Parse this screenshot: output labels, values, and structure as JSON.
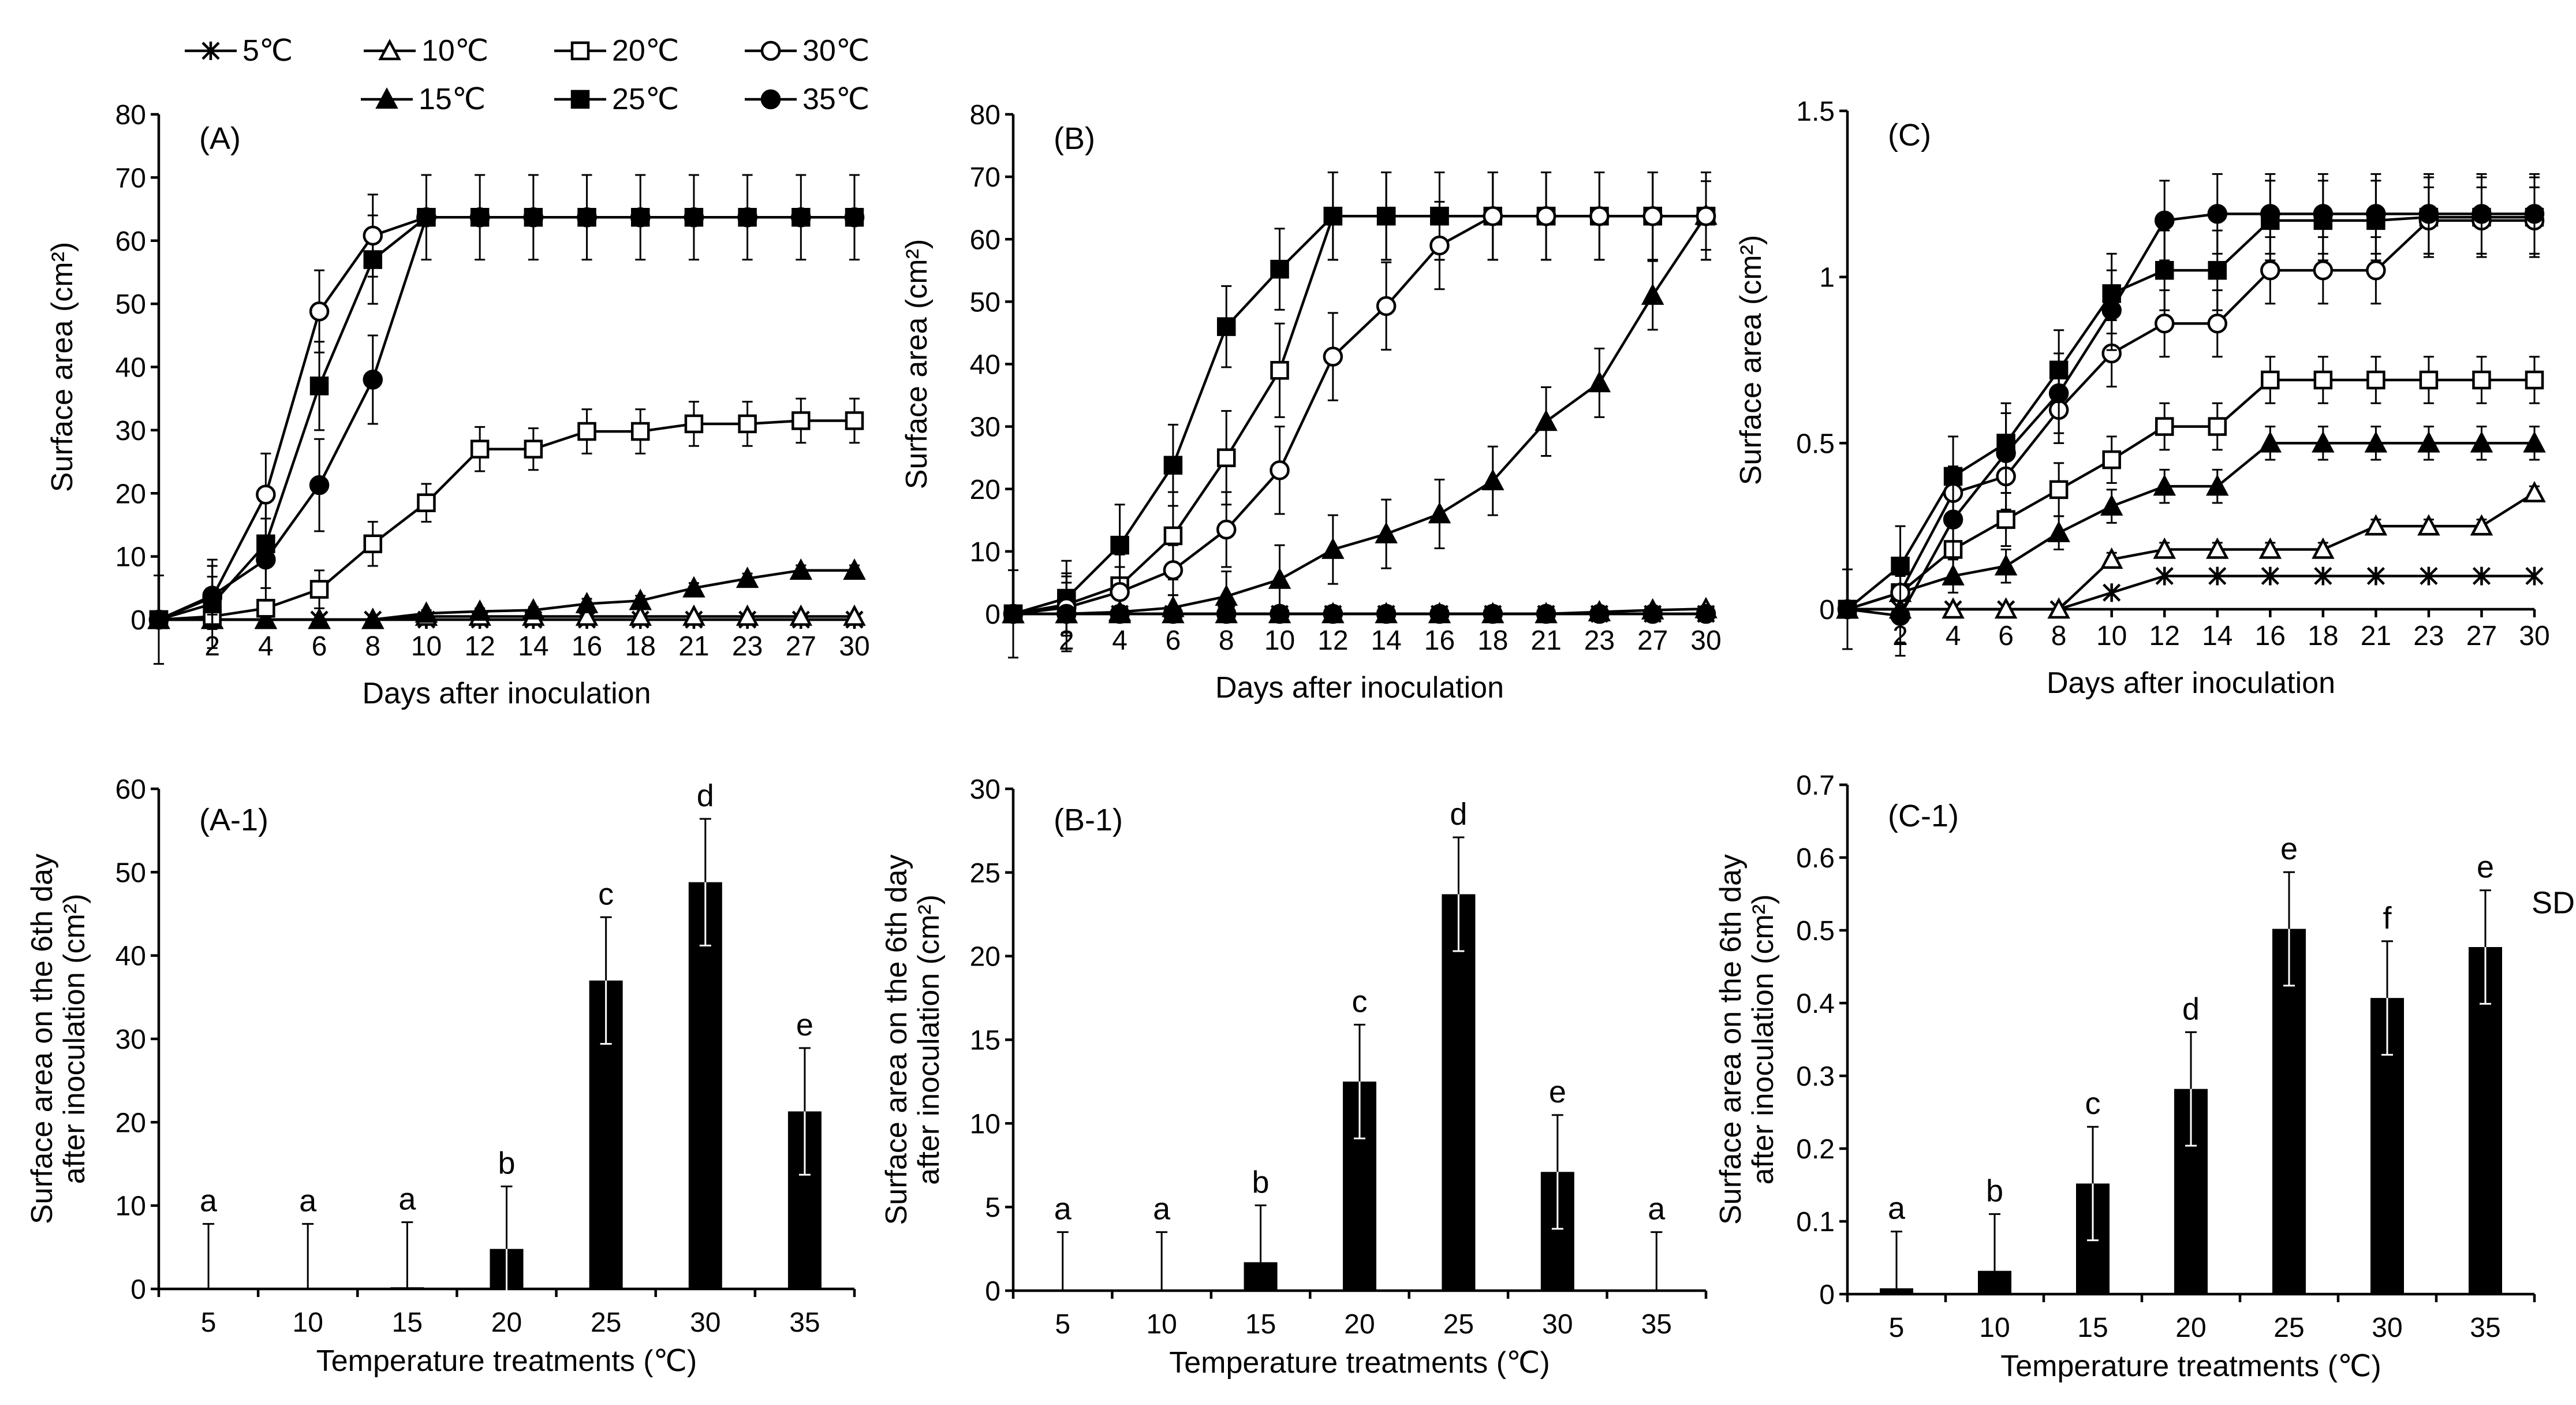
{
  "legend": {
    "row1": [
      {
        "label": "5℃",
        "marker": "star",
        "fill": "none"
      },
      {
        "label": "10℃",
        "marker": "triangle",
        "fill": "none"
      },
      {
        "label": "20℃",
        "marker": "square",
        "fill": "none"
      },
      {
        "label": "30℃",
        "marker": "circle",
        "fill": "none"
      }
    ],
    "row2": [
      {
        "label": "15℃",
        "marker": "triangle",
        "fill": "#000000"
      },
      {
        "label": "25℃",
        "marker": "square",
        "fill": "#000000"
      },
      {
        "label": "35℃",
        "marker": "circle",
        "fill": "#000000"
      }
    ]
  },
  "chart_data": [
    {
      "panel": "(A)",
      "type": "line",
      "x": [
        "",
        "2",
        "4",
        "6",
        "8",
        "10",
        "12",
        "14",
        "16",
        "18",
        "21",
        "23",
        "27",
        "30"
      ],
      "xlabel": "Days after inoculation",
      "ylabel": "Surface area (cm²)",
      "ylim": [
        0,
        80
      ],
      "yticks": [
        "0",
        "10",
        "20",
        "30",
        "40",
        "50",
        "60",
        "70",
        "80"
      ],
      "series": [
        {
          "name": "5℃",
          "marker": "star",
          "fill": "none",
          "values": [
            0,
            0,
            0,
            0,
            0,
            0,
            0,
            0,
            0,
            0,
            0,
            0,
            0,
            0
          ],
          "err": [
            7,
            0,
            0,
            0,
            0,
            0,
            0,
            0,
            0,
            0,
            0,
            0,
            0,
            0
          ]
        },
        {
          "name": "10℃",
          "marker": "triangle",
          "fill": "none",
          "values": [
            0,
            0,
            0,
            0,
            0,
            0.5,
            0.5,
            0.5,
            0.5,
            0.5,
            0.5,
            0.5,
            0.5,
            0.5
          ],
          "err": [
            0,
            0,
            0,
            0,
            0,
            0,
            0,
            0,
            0,
            0,
            0,
            0,
            0,
            0
          ]
        },
        {
          "name": "15℃",
          "marker": "triangle",
          "fill": "#000000",
          "values": [
            0,
            0,
            0,
            0,
            0,
            1,
            1.3,
            1.5,
            2.5,
            3,
            5,
            6.5,
            7.8,
            7.8
          ],
          "err": [
            0,
            0,
            0,
            0,
            0,
            0.5,
            0.5,
            0.5,
            0.8,
            0.8,
            0.8,
            0.8,
            0.8,
            0.8
          ]
        },
        {
          "name": "20℃",
          "marker": "square",
          "fill": "none",
          "values": [
            0,
            0.5,
            1.8,
            4.8,
            12,
            18.5,
            27,
            27,
            29.8,
            29.8,
            31,
            31,
            31.5,
            31.5
          ],
          "err": [
            0,
            0.5,
            1,
            3,
            3.5,
            3,
            3.5,
            3.3,
            3.5,
            3.5,
            3.5,
            3.5,
            3.5,
            3.5
          ]
        },
        {
          "name": "25℃",
          "marker": "square",
          "fill": "#000000",
          "values": [
            0,
            2.5,
            12,
            37,
            57,
            63.7,
            63.7,
            63.7,
            63.7,
            63.7,
            63.7,
            63.7,
            63.7,
            63.7
          ],
          "err": [
            0,
            7,
            7,
            7,
            7,
            6.7,
            6.7,
            6.7,
            6.7,
            6.7,
            6.7,
            6.7,
            6.7,
            6.7
          ]
        },
        {
          "name": "30℃",
          "marker": "circle",
          "fill": "none",
          "values": [
            0,
            3.5,
            19.8,
            48.8,
            60.8,
            63.7,
            63.7,
            63.7,
            63.7,
            63.7,
            63.7,
            63.7,
            63.7,
            63.7
          ],
          "err": [
            0,
            5,
            6.5,
            6.5,
            6.5,
            0,
            0,
            0,
            0,
            0,
            0,
            0,
            0,
            0
          ]
        },
        {
          "name": "35℃",
          "marker": "circle",
          "fill": "#000000",
          "values": [
            0,
            3.8,
            9.5,
            21.3,
            38,
            63.7,
            63.7,
            63.7,
            63.7,
            63.7,
            63.7,
            63.7,
            63.7,
            63.7
          ],
          "err": [
            0,
            3,
            6.5,
            7.3,
            7,
            0,
            0,
            0,
            0,
            0,
            0,
            0,
            0,
            0
          ]
        }
      ]
    },
    {
      "panel": "(B)",
      "type": "line",
      "x": [
        "",
        "2",
        "4",
        "6",
        "8",
        "10",
        "12",
        "14",
        "16",
        "18",
        "21",
        "23",
        "27",
        "30"
      ],
      "xlabel": "Days after inoculation",
      "ylabel": "Surface area (cm²)",
      "ylim": [
        0,
        80
      ],
      "yticks": [
        "0",
        "10",
        "20",
        "30",
        "40",
        "50",
        "60",
        "70",
        "80"
      ],
      "series": [
        {
          "name": "5℃",
          "marker": "star",
          "fill": "none",
          "values": [
            0,
            0,
            0,
            0,
            0,
            0,
            0,
            0,
            0,
            0,
            0,
            0,
            0,
            0
          ],
          "err": [
            7,
            6,
            0,
            0,
            0,
            0,
            0,
            0,
            0,
            0,
            0,
            0,
            0,
            0
          ]
        },
        {
          "name": "10℃",
          "marker": "triangle",
          "fill": "none",
          "values": [
            0,
            0,
            0,
            0,
            0,
            0,
            0,
            0,
            0,
            0,
            0,
            0.3,
            0.6,
            0.8
          ],
          "err": [
            0,
            0,
            0,
            0,
            0,
            0,
            0,
            0,
            0,
            0,
            0,
            0,
            0,
            0
          ]
        },
        {
          "name": "15℃",
          "marker": "triangle",
          "fill": "#000000",
          "values": [
            0,
            0,
            0.3,
            1,
            2.8,
            5.5,
            10.3,
            12.8,
            16,
            21.3,
            30.8,
            37,
            51,
            63.8
          ],
          "err": [
            0,
            0,
            1,
            2,
            4,
            5.5,
            5.5,
            5.5,
            5.5,
            5.5,
            5.5,
            5.5,
            5.5,
            5.5
          ]
        },
        {
          "name": "20℃",
          "marker": "square",
          "fill": "none",
          "values": [
            0,
            1.5,
            4.5,
            12.5,
            25,
            39,
            63.7,
            63.7,
            63.7,
            63.7,
            63.7,
            63.7,
            63.7,
            63.7
          ],
          "err": [
            0,
            5,
            5,
            7,
            7.5,
            7.5,
            7,
            7,
            7,
            7,
            7,
            7,
            7,
            7
          ]
        },
        {
          "name": "25℃",
          "marker": "square",
          "fill": "#000000",
          "values": [
            0,
            2.5,
            11,
            23.8,
            46,
            55.2,
            63.7,
            63.7,
            63.7,
            63.7,
            63.7,
            63.7,
            63.7,
            63.7
          ],
          "err": [
            0,
            6,
            6.5,
            6.5,
            6.5,
            6.5,
            7,
            7,
            7,
            7,
            7,
            7,
            7,
            7
          ]
        },
        {
          "name": "30℃",
          "marker": "circle",
          "fill": "none",
          "values": [
            0,
            1,
            3.5,
            7,
            13.5,
            23,
            41.2,
            49.3,
            59,
            63.7,
            63.7,
            63.7,
            63.7,
            63.7
          ],
          "err": [
            0,
            4,
            4,
            4,
            6,
            7,
            7,
            7,
            7,
            7,
            7,
            7,
            7,
            7
          ]
        },
        {
          "name": "35℃",
          "marker": "circle",
          "fill": "#000000",
          "values": [
            0,
            0,
            0,
            0,
            0,
            0,
            0,
            0,
            0,
            0,
            0,
            0,
            0,
            0
          ],
          "err": [
            0,
            0,
            0,
            0,
            0,
            0,
            0,
            0,
            0,
            0,
            0,
            0,
            0,
            0
          ]
        }
      ]
    },
    {
      "panel": "(C)",
      "type": "line",
      "x": [
        "",
        "2",
        "4",
        "6",
        "8",
        "10",
        "12",
        "14",
        "16",
        "18",
        "21",
        "23",
        "27",
        "30"
      ],
      "xlabel": "Days after inoculation",
      "ylabel": "Surface area (cm²)",
      "ylim": [
        0,
        1.5
      ],
      "yticks": [
        "0",
        "0.5",
        "1",
        "1.5"
      ],
      "series": [
        {
          "name": "5℃",
          "marker": "star",
          "fill": "none",
          "values": [
            0,
            0,
            0,
            0,
            0,
            0.05,
            0.1,
            0.1,
            0.1,
            0.1,
            0.1,
            0.1,
            0.1,
            0.1
          ],
          "err": [
            0.12,
            0.1,
            0,
            0,
            0,
            0,
            0,
            0,
            0,
            0,
            0,
            0,
            0,
            0
          ]
        },
        {
          "name": "10℃",
          "marker": "triangle",
          "fill": "none",
          "values": [
            0,
            0,
            0,
            0,
            0,
            0.15,
            0.18,
            0.18,
            0.18,
            0.18,
            0.25,
            0.25,
            0.25,
            0.35
          ],
          "err": [
            0,
            0,
            0,
            0,
            0,
            0.02,
            0.02,
            0.02,
            0.02,
            0.02,
            0.02,
            0.02,
            0.02,
            0.02
          ]
        },
        {
          "name": "15℃",
          "marker": "triangle",
          "fill": "#000000",
          "values": [
            0,
            0.05,
            0.1,
            0.13,
            0.23,
            0.31,
            0.37,
            0.37,
            0.5,
            0.5,
            0.5,
            0.5,
            0.5,
            0.5
          ],
          "err": [
            0,
            0.05,
            0.05,
            0.05,
            0.05,
            0.05,
            0.05,
            0.05,
            0.05,
            0.05,
            0.05,
            0.05,
            0.05,
            0.05
          ]
        },
        {
          "name": "20℃",
          "marker": "square",
          "fill": "none",
          "values": [
            0,
            0.05,
            0.18,
            0.27,
            0.36,
            0.45,
            0.55,
            0.55,
            0.69,
            0.69,
            0.69,
            0.69,
            0.69,
            0.69
          ],
          "err": [
            0,
            0.08,
            0.08,
            0.08,
            0.08,
            0.07,
            0.07,
            0.07,
            0.07,
            0.07,
            0.07,
            0.07,
            0.07,
            0.07
          ]
        },
        {
          "name": "25℃",
          "marker": "square",
          "fill": "#000000",
          "values": [
            0,
            0.13,
            0.4,
            0.5,
            0.72,
            0.95,
            1.02,
            1.02,
            1.17,
            1.17,
            1.17,
            1.18,
            1.18,
            1.18
          ],
          "err": [
            0,
            0.12,
            0.12,
            0.12,
            0.12,
            0.12,
            0.12,
            0.12,
            0.12,
            0.12,
            0.12,
            0.12,
            0.12,
            0.12
          ]
        },
        {
          "name": "30℃",
          "marker": "circle",
          "fill": "none",
          "values": [
            0,
            0.05,
            0.35,
            0.4,
            0.6,
            0.77,
            0.86,
            0.86,
            1.02,
            1.02,
            1.02,
            1.17,
            1.17,
            1.17
          ],
          "err": [
            0,
            0.08,
            0.08,
            0.1,
            0.1,
            0.1,
            0.1,
            0.1,
            0.1,
            0.1,
            0.1,
            0.1,
            0.1,
            0.1
          ]
        },
        {
          "name": "35℃",
          "marker": "circle",
          "fill": "#000000",
          "values": [
            0,
            -0.02,
            0.27,
            0.47,
            0.65,
            0.9,
            1.17,
            1.19,
            1.19,
            1.19,
            1.19,
            1.19,
            1.19,
            1.19
          ],
          "err": [
            0,
            0.12,
            0.12,
            0.12,
            0.12,
            0.12,
            0.12,
            0.12,
            0.12,
            0.12,
            0.12,
            0.12,
            0.12,
            0.12
          ]
        }
      ]
    },
    {
      "panel": "(A-1)",
      "type": "bar",
      "categories": [
        "5",
        "10",
        "15",
        "20",
        "25",
        "30",
        "35"
      ],
      "values": [
        0,
        0,
        0.2,
        4.8,
        37,
        48.8,
        21.3
      ],
      "err": [
        7.8,
        7.8,
        7.8,
        7.5,
        7.6,
        7.6,
        7.6
      ],
      "letters": [
        "a",
        "a",
        "a",
        "b",
        "c",
        "d",
        "e"
      ],
      "xlabel": "Temperature treatments (℃)",
      "ylabel": [
        "Surface area on the 6th day",
        "after inoculation (cm²)"
      ],
      "ylim": [
        0,
        60
      ],
      "yticks": [
        "0",
        "10",
        "20",
        "30",
        "40",
        "50",
        "60"
      ]
    },
    {
      "panel": "(B-1)",
      "type": "bar",
      "categories": [
        "5",
        "10",
        "15",
        "20",
        "25",
        "30",
        "35"
      ],
      "values": [
        0,
        0,
        1.7,
        12.5,
        23.7,
        7.1,
        0
      ],
      "err": [
        3.5,
        3.5,
        3.4,
        3.4,
        3.4,
        3.4,
        3.5
      ],
      "letters": [
        "a",
        "a",
        "b",
        "c",
        "d",
        "e",
        "a"
      ],
      "xlabel": "Temperature treatments (℃)",
      "ylabel": [
        "Surface area on the 6th day",
        "after inoculation (cm²)"
      ],
      "ylim": [
        0,
        30
      ],
      "yticks": [
        "0",
        "5",
        "10",
        "15",
        "20",
        "25",
        "30"
      ]
    },
    {
      "panel": "(C-1)",
      "type": "bar",
      "categories": [
        "5",
        "10",
        "15",
        "20",
        "25",
        "30",
        "35"
      ],
      "values": [
        0.008,
        0.032,
        0.152,
        0.282,
        0.502,
        0.407,
        0.477
      ],
      "err": [
        0.078,
        0.078,
        0.078,
        0.078,
        0.078,
        0.078,
        0.078
      ],
      "letters": [
        "a",
        "b",
        "c",
        "d",
        "e",
        "f",
        "e"
      ],
      "annotation": "SD",
      "xlabel": "Temperature treatments (℃)",
      "ylabel": [
        "Surface area on the 6th day",
        "after inoculation (cm²)"
      ],
      "ylim": [
        0,
        0.7
      ],
      "yticks": [
        "0",
        "0.1",
        "0.2",
        "0.3",
        "0.4",
        "0.5",
        "0.6",
        "0.7"
      ]
    }
  ]
}
